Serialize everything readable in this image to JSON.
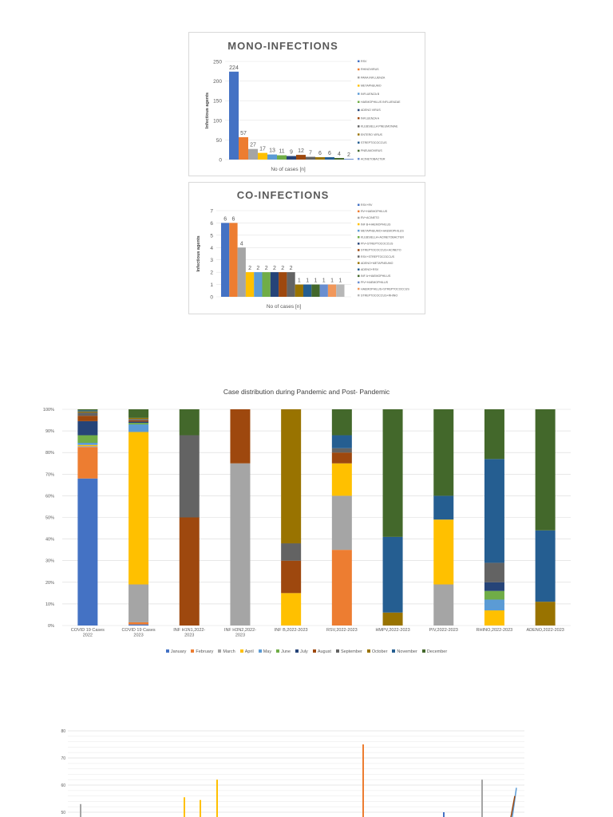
{
  "chart_data": [
    {
      "type": "bar",
      "title": "MONO-INFECTIONS",
      "xlabel": "No of cases [n]",
      "ylabel": "Infectious agents",
      "ylim": [
        0,
        250
      ],
      "yticks": [
        "0",
        "50",
        "100",
        "150",
        "200",
        "250"
      ],
      "grid": true,
      "legend_position": "right",
      "categories": [
        "RSV",
        "RHINOVIRUS",
        "PARA INFLUENZA",
        "METAPNEUMO",
        "INFLUENZA B",
        "HAEMOPHILUS INFLUENZAE",
        "ADENO VIRUS",
        "INFLUENZA A",
        "KLEBSIELLA PNEUMONIAE",
        "ENTERO VIRUS",
        "STREPTOCOCCUS",
        "PNEUMOVIRUS",
        "ACINETOBACTER"
      ],
      "values": [
        224,
        57,
        27,
        17,
        13,
        11,
        9,
        12,
        7,
        6,
        6,
        4,
        2
      ],
      "colors": [
        "#4472c4",
        "#ed7d31",
        "#a5a5a5",
        "#ffc000",
        "#5b9bd5",
        "#70ad47",
        "#264478",
        "#9e480e",
        "#636363",
        "#997300",
        "#255e91",
        "#43682b",
        "#698ed0"
      ]
    },
    {
      "type": "bar",
      "title": "CO-INFECTIONS",
      "xlabel": "No of cases [n]",
      "ylabel": "Infectious agents",
      "ylim": [
        0,
        7
      ],
      "yticks": [
        "0",
        "1",
        "2",
        "3",
        "4",
        "5",
        "6",
        "7"
      ],
      "grid": true,
      "legend_position": "right",
      "categories": [
        "RSV+RV",
        "RV+HAEMOPHILUS",
        "RV+ACINETO",
        "INF B+HAEMOPHILUS",
        "METAPNEUMO+HAEMOPHILUS",
        "KLEBSIELLA+ACINETOBACTER",
        "PIV+STREPTOCOCCUS",
        "STREPTOCOCCUS+ACINETO",
        "RSV+STREPTOCOCCUS",
        "ADENO+METAPNEUMO",
        "ADENO+RSV",
        "INF A+HAEMOPHILUS",
        "PIV+HAEMOPHILUS",
        "HAEMOPHILUS+STREPTOCOCCUS",
        "STREPTOCOCCUS+RHINO"
      ],
      "values": [
        6,
        6,
        4,
        2,
        2,
        2,
        2,
        2,
        2,
        1,
        1,
        1,
        1,
        1,
        1
      ],
      "colors": [
        "#4472c4",
        "#ed7d31",
        "#a5a5a5",
        "#ffc000",
        "#5b9bd5",
        "#70ad47",
        "#264478",
        "#9e480e",
        "#636363",
        "#997300",
        "#255e91",
        "#43682b",
        "#698ed0",
        "#f1975a",
        "#b7b7b7"
      ]
    },
    {
      "type": "bar",
      "stacked": "percent",
      "title": "Case distribution during Pandemic and Post- Pandemic",
      "ylim": [
        0,
        100
      ],
      "yticks": [
        "0%",
        "10%",
        "20%",
        "30%",
        "40%",
        "50%",
        "60%",
        "70%",
        "80%",
        "90%",
        "100%"
      ],
      "grid": true,
      "legend_position": "bottom",
      "categories": [
        "COVID 19 Cases,2022",
        "COVID 19 Cases,2023",
        "INF H1N1,2022-2023",
        "INF H3N2,2022-2023",
        "INF B,2022-2023",
        "RSV,2022-2023",
        "HMPV,2022-2023",
        "PIV,2022-2023",
        "RHINO,2022-2023",
        "ADENO,2022-2023"
      ],
      "series": [
        {
          "name": "January",
          "color": "#4472c4",
          "values": [
            68,
            0.5,
            0,
            0,
            0,
            0,
            0,
            0,
            0,
            0
          ]
        },
        {
          "name": "February",
          "color": "#ed7d31",
          "values": [
            14.5,
            1,
            0,
            0,
            0,
            35,
            0,
            0,
            0,
            0
          ]
        },
        {
          "name": "March",
          "color": "#a5a5a5",
          "values": [
            0.5,
            17.5,
            0,
            75,
            0,
            25,
            0,
            19,
            0,
            0
          ]
        },
        {
          "name": "April",
          "color": "#ffc000",
          "values": [
            0.5,
            70.5,
            0,
            0,
            15,
            15,
            0,
            30,
            7,
            0
          ]
        },
        {
          "name": "May",
          "color": "#5b9bd5",
          "values": [
            1,
            3.5,
            0,
            0,
            0,
            0,
            0,
            0,
            5,
            0
          ]
        },
        {
          "name": "June",
          "color": "#70ad47",
          "values": [
            3.5,
            0.7,
            0,
            0,
            0,
            0,
            0,
            0,
            4,
            0
          ]
        },
        {
          "name": "July",
          "color": "#264478",
          "values": [
            6.5,
            0.6,
            0,
            0,
            0,
            0,
            0,
            0,
            4,
            0
          ]
        },
        {
          "name": "August",
          "color": "#9e480e",
          "values": [
            2.5,
            0.6,
            50,
            25,
            15,
            5,
            0,
            0,
            0,
            0
          ]
        },
        {
          "name": "September",
          "color": "#636363",
          "values": [
            1.5,
            0.6,
            38,
            0,
            8,
            2,
            0,
            0,
            9,
            0
          ]
        },
        {
          "name": "October",
          "color": "#997300",
          "values": [
            0.5,
            0.5,
            0,
            0,
            62,
            0,
            6,
            0,
            0,
            11
          ]
        },
        {
          "name": "November",
          "color": "#255e91",
          "values": [
            0.5,
            0,
            0,
            0,
            0,
            6,
            35,
            11,
            48,
            33
          ]
        },
        {
          "name": "December",
          "color": "#43682b",
          "values": [
            0.5,
            4,
            12,
            0,
            0,
            12,
            59,
            40,
            23,
            56
          ]
        }
      ]
    },
    {
      "type": "bar",
      "note_partial": "cropped at page bottom",
      "yticks": [
        "50",
        "60",
        "70",
        "80"
      ],
      "ylim": [
        50,
        80
      ],
      "grid": true,
      "values": [
        53,
        55.5,
        54.5,
        62,
        75,
        50,
        62,
        59,
        56
      ],
      "colors": [
        "#a5a5a5",
        "#ffc000",
        "#ffc000",
        "#ffc000",
        "#ed7d31",
        "#4472c4",
        "#a5a5a5",
        "#5b9bd5",
        "#9e480e"
      ]
    }
  ]
}
